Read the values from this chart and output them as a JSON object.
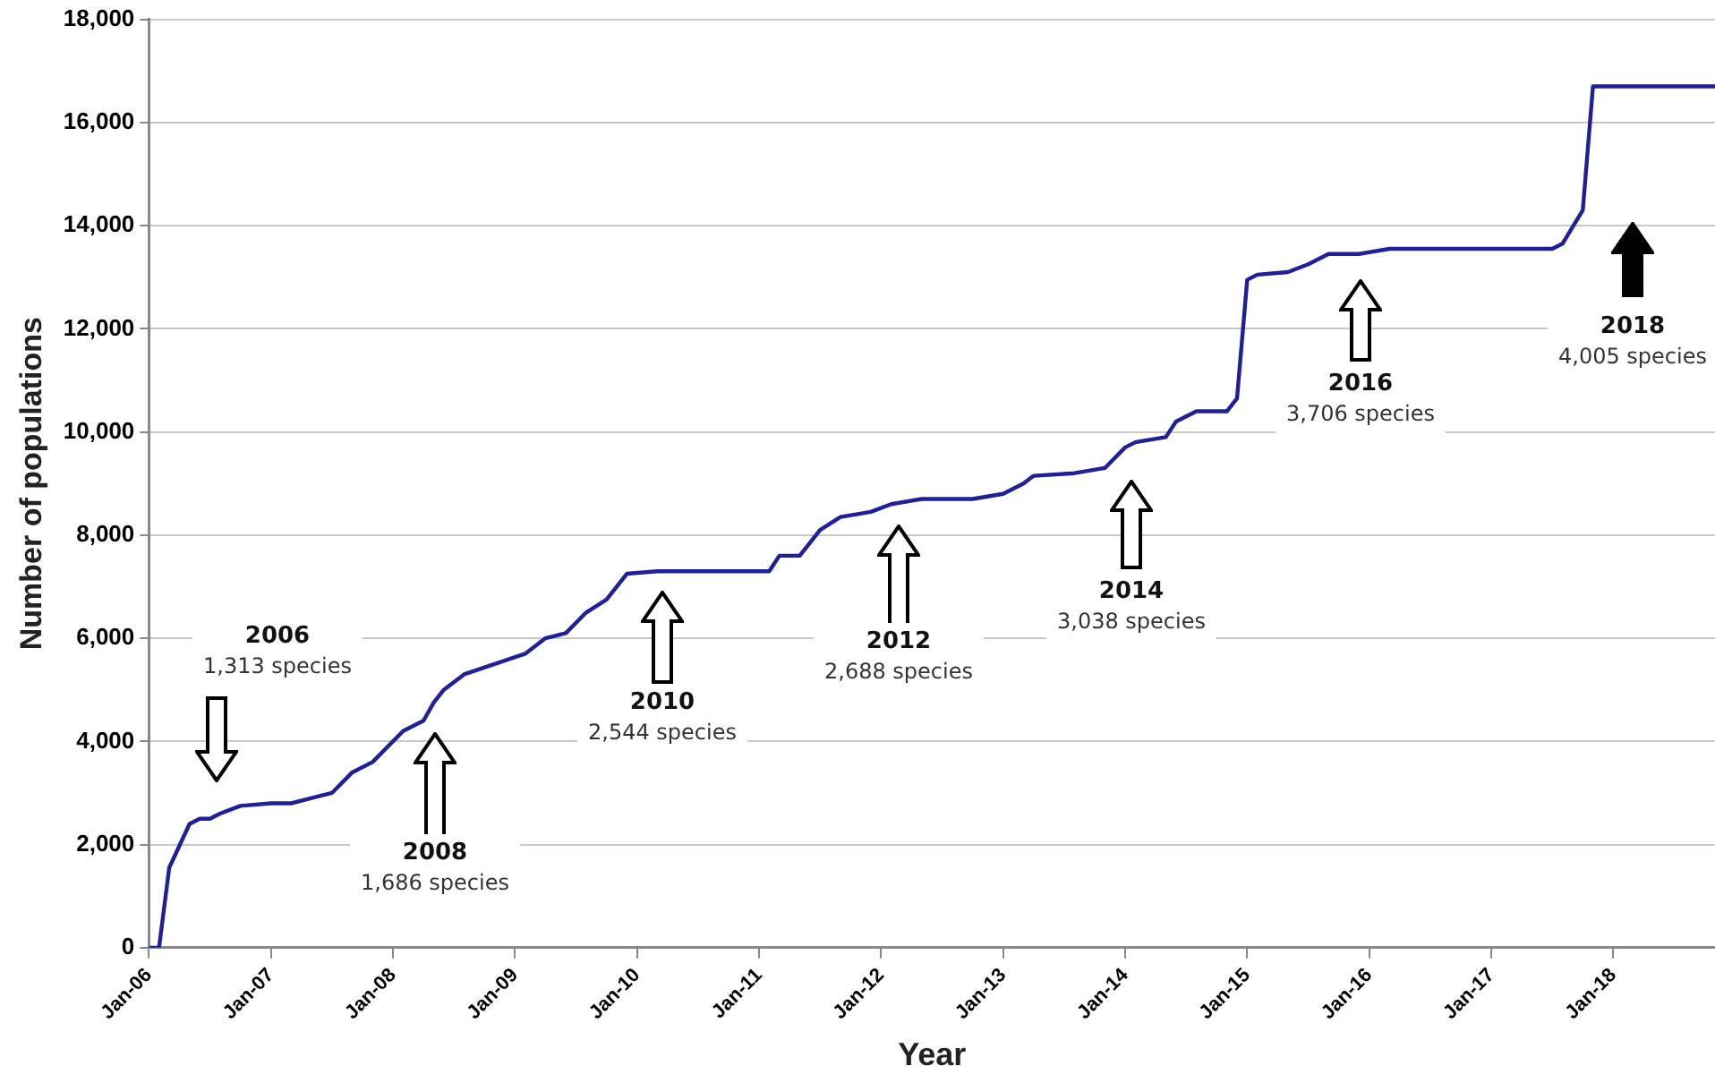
{
  "chart_data": {
    "type": "line",
    "xlabel": "Year",
    "ylabel": "Number of populations",
    "x": [
      "2006-01",
      "2006-02",
      "2006-03",
      "2006-05",
      "2006-06",
      "2006-07",
      "2006-08",
      "2006-10",
      "2007-01",
      "2007-03",
      "2007-05",
      "2007-07",
      "2007-09",
      "2007-11",
      "2008-02",
      "2008-04",
      "2008-05",
      "2008-06",
      "2008-08",
      "2008-11",
      "2009-02",
      "2009-04",
      "2009-06",
      "2009-08",
      "2009-10",
      "2009-12",
      "2010-03",
      "2010-11",
      "2011-02",
      "2011-03",
      "2011-05",
      "2011-07",
      "2011-09",
      "2011-12",
      "2012-02",
      "2012-05",
      "2012-10",
      "2013-01",
      "2013-03",
      "2013-04",
      "2013-08",
      "2013-11",
      "2014-01",
      "2014-02",
      "2014-05",
      "2014-06",
      "2014-08",
      "2014-11",
      "2014-12",
      "2015-01",
      "2015-02",
      "2015-05",
      "2015-07",
      "2015-09",
      "2015-12",
      "2016-03",
      "2017-07",
      "2017-08",
      "2017-10",
      "2017-11",
      "2018-11"
    ],
    "series": [
      {
        "color": "#1f1f99",
        "values": [
          0,
          0,
          1550,
          2400,
          2500,
          2500,
          2600,
          2750,
          2800,
          2800,
          2900,
          3000,
          3400,
          3600,
          4200,
          4400,
          4750,
          5000,
          5300,
          5500,
          5700,
          6000,
          6100,
          6500,
          6750,
          7250,
          7300,
          7300,
          7300,
          7600,
          7600,
          8100,
          8350,
          8450,
          8600,
          8700,
          8700,
          8800,
          9000,
          9150,
          9200,
          9300,
          9700,
          9800,
          9900,
          10200,
          10400,
          10400,
          10650,
          12950,
          13050,
          13100,
          13250,
          13450,
          13450,
          13550,
          13550,
          13650,
          14300,
          16700,
          16700
        ]
      }
    ],
    "xlim": [
      "2006-01",
      "2018-11"
    ],
    "xticks": [
      {
        "value": "2006-01",
        "label": "Jan-06"
      },
      {
        "value": "2007-01",
        "label": "Jan-07"
      },
      {
        "value": "2008-01",
        "label": "Jan-08"
      },
      {
        "value": "2009-01",
        "label": "Jan-09"
      },
      {
        "value": "2010-01",
        "label": "Jan-10"
      },
      {
        "value": "2011-01",
        "label": "Jan-11"
      },
      {
        "value": "2012-01",
        "label": "Jan-12"
      },
      {
        "value": "2013-01",
        "label": "Jan-13"
      },
      {
        "value": "2014-01",
        "label": "Jan-14"
      },
      {
        "value": "2015-01",
        "label": "Jan-15"
      },
      {
        "value": "2016-01",
        "label": "Jan-16"
      },
      {
        "value": "2017-01",
        "label": "Jan-17"
      },
      {
        "value": "2018-01",
        "label": "Jan-18"
      }
    ],
    "ylim": [
      0,
      18000
    ],
    "yticks": [
      {
        "value": 0,
        "label": "0"
      },
      {
        "value": 2000,
        "label": "2,000"
      },
      {
        "value": 4000,
        "label": "4,000"
      },
      {
        "value": 6000,
        "label": "6,000"
      },
      {
        "value": 8000,
        "label": "8,000"
      },
      {
        "value": 10000,
        "label": "10,000"
      },
      {
        "value": 12000,
        "label": "12,000"
      },
      {
        "value": 14000,
        "label": "14,000"
      },
      {
        "value": 16000,
        "label": "16,000"
      },
      {
        "value": 18000,
        "label": "18,000"
      }
    ],
    "grid": "y",
    "legend": false,
    "marker": "none",
    "line_style": "solid",
    "annotations": [
      "2006\n1,313 species",
      "2008\n1,686 species",
      "2010\n2,544 species",
      "2012\n2,688 species",
      "2014\n3,038 species",
      "2016\n3,706 species",
      "2018\n4,005 species"
    ]
  }
}
